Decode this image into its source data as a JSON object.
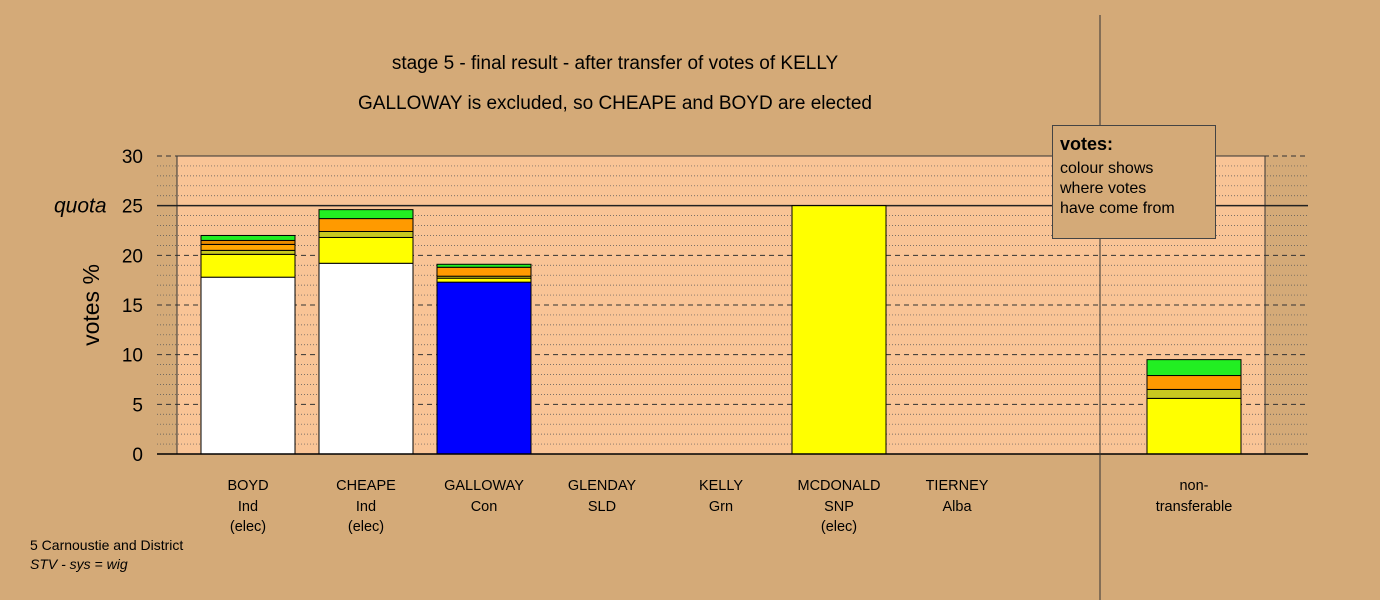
{
  "chart_data": {
    "type": "bar",
    "title": "stage 5 - final result - after transfer of votes of KELLY",
    "subtitle": "GALLOWAY is excluded, so CHEAPE and BOYD are elected",
    "ylabel": "votes %",
    "ylim": [
      0,
      30
    ],
    "yticks": [
      0,
      5,
      10,
      15,
      20,
      25,
      30
    ],
    "quota": {
      "label": "quota",
      "value": 25
    },
    "grid": true,
    "categories": [
      {
        "name": "BOYD",
        "party": "Ind",
        "status": "(elec)",
        "segments": [
          {
            "value": 17.8,
            "color": "#ffffff"
          },
          {
            "value": 2.3,
            "color": "#ffff00"
          },
          {
            "value": 0.4,
            "color": "#c8c820"
          },
          {
            "value": 0.6,
            "color": "#ffa500"
          },
          {
            "value": 0.4,
            "color": "#e88a00"
          },
          {
            "value": 0.5,
            "color": "#22ee22"
          }
        ]
      },
      {
        "name": "CHEAPE",
        "party": "Ind",
        "status": "(elec)",
        "segments": [
          {
            "value": 19.2,
            "color": "#ffffff"
          },
          {
            "value": 2.6,
            "color": "#ffff00"
          },
          {
            "value": 0.6,
            "color": "#c8c820"
          },
          {
            "value": 1.3,
            "color": "#ff9a00"
          },
          {
            "value": 0.9,
            "color": "#22ee22"
          }
        ]
      },
      {
        "name": "GALLOWAY",
        "party": "Con",
        "status": "",
        "segments": [
          {
            "value": 17.3,
            "color": "#0000ff"
          },
          {
            "value": 0.4,
            "color": "#ffff00"
          },
          {
            "value": 0.2,
            "color": "#c8c820"
          },
          {
            "value": 0.9,
            "color": "#ff9a00"
          },
          {
            "value": 0.3,
            "color": "#22ee22"
          }
        ]
      },
      {
        "name": "GLENDAY",
        "party": "SLD",
        "status": "",
        "segments": []
      },
      {
        "name": "KELLY",
        "party": "Grn",
        "status": "",
        "segments": []
      },
      {
        "name": "MCDONALD",
        "party": "SNP",
        "status": "(elec)",
        "segments": [
          {
            "value": 25,
            "color": "#ffff00"
          }
        ]
      },
      {
        "name": "TIERNEY",
        "party": "Alba",
        "status": "",
        "segments": []
      },
      {
        "name": "non-",
        "party": "transferable",
        "status": "",
        "segments": [
          {
            "value": 5.6,
            "color": "#ffff00"
          },
          {
            "value": 0.9,
            "color": "#c8c820"
          },
          {
            "value": 1.4,
            "color": "#ff9a00"
          },
          {
            "value": 1.6,
            "color": "#22ee22"
          }
        ]
      }
    ],
    "legend": {
      "heading": "votes:",
      "lines": [
        "colour shows",
        "where votes",
        "have come from"
      ],
      "placement": "top-right"
    }
  },
  "colors": {
    "background": "#d4aa78",
    "plot_background": "#f9c496"
  },
  "footer": {
    "line1": "5 Carnoustie and District",
    "line2": "STV - sys = wig"
  }
}
